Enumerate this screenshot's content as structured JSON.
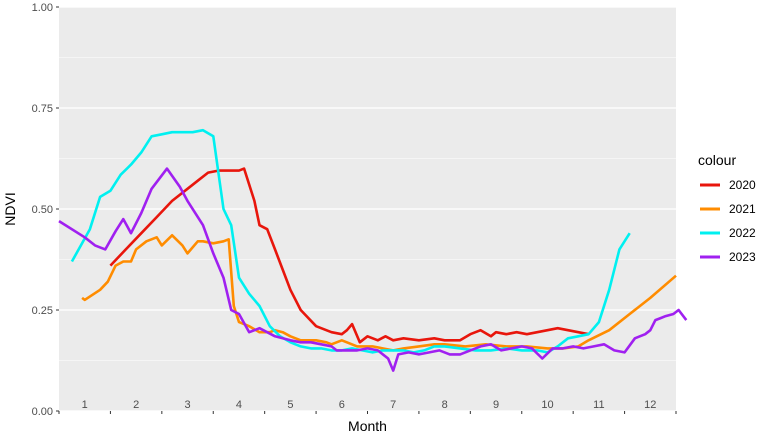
{
  "chart_data": {
    "type": "line",
    "title": "",
    "xlabel": "Month",
    "ylabel": "NDVI",
    "xlim": [
      0.5,
      12.5
    ],
    "ylim": [
      0,
      1
    ],
    "y_ticks": [
      "0.00",
      "0.25",
      "0.50",
      "0.75",
      "1.00"
    ],
    "x_tick_labels": [
      "1",
      "2",
      "3",
      "4",
      "5",
      "6",
      "7",
      "8",
      "9",
      "10",
      "11",
      "12"
    ],
    "grid": true,
    "legend": {
      "title": "colour",
      "placement": "right"
    },
    "series": [
      {
        "name": "2020",
        "color": "#e8160c",
        "x": [
          1.5,
          1.8,
          2.1,
          2.4,
          2.7,
          3.0,
          3.2,
          3.4,
          3.6,
          3.8,
          4.0,
          4.1,
          4.3,
          4.4,
          4.55,
          4.7,
          4.85,
          5.0,
          5.2,
          5.5,
          5.8,
          6.0,
          6.1,
          6.2,
          6.35,
          6.5,
          6.7,
          6.85,
          7.0,
          7.2,
          7.5,
          7.8,
          8.0,
          8.3,
          8.5,
          8.7,
          8.9,
          9.0,
          9.2,
          9.4,
          9.6,
          9.8,
          10.0,
          10.2,
          10.4,
          10.6,
          10.8
        ],
        "values": [
          0.36,
          0.4,
          0.44,
          0.48,
          0.52,
          0.55,
          0.57,
          0.59,
          0.595,
          0.595,
          0.595,
          0.6,
          0.52,
          0.46,
          0.45,
          0.4,
          0.35,
          0.3,
          0.25,
          0.21,
          0.195,
          0.19,
          0.2,
          0.215,
          0.17,
          0.185,
          0.175,
          0.185,
          0.175,
          0.18,
          0.175,
          0.18,
          0.175,
          0.175,
          0.19,
          0.2,
          0.185,
          0.195,
          0.19,
          0.195,
          0.19,
          0.195,
          0.2,
          0.205,
          0.2,
          0.195,
          0.19
        ]
      },
      {
        "name": "2021",
        "color": "#ff8c00",
        "x": [
          0.95,
          1.0,
          1.3,
          1.45,
          1.6,
          1.75,
          1.9,
          2.0,
          2.2,
          2.4,
          2.5,
          2.7,
          2.9,
          3.0,
          3.2,
          3.3,
          3.5,
          3.7,
          3.8,
          3.9,
          4.0,
          4.2,
          4.4,
          4.6,
          4.7,
          4.85,
          5.0,
          5.2,
          5.5,
          5.7,
          5.8,
          5.9,
          6.0,
          6.3,
          6.6,
          7.0,
          7.2,
          7.5,
          7.8,
          8.0,
          8.4,
          8.8,
          9.2,
          9.6,
          10.0,
          10.3,
          10.6,
          10.8,
          11.2,
          11.6,
          12.0,
          12.5
        ],
        "values": [
          0.28,
          0.275,
          0.3,
          0.32,
          0.36,
          0.37,
          0.37,
          0.4,
          0.42,
          0.43,
          0.41,
          0.435,
          0.41,
          0.39,
          0.42,
          0.42,
          0.415,
          0.42,
          0.425,
          0.26,
          0.22,
          0.21,
          0.195,
          0.195,
          0.2,
          0.195,
          0.185,
          0.175,
          0.175,
          0.17,
          0.165,
          0.17,
          0.175,
          0.16,
          0.16,
          0.15,
          0.155,
          0.16,
          0.165,
          0.165,
          0.16,
          0.165,
          0.16,
          0.16,
          0.155,
          0.155,
          0.16,
          0.175,
          0.2,
          0.24,
          0.28,
          0.335
        ]
      },
      {
        "name": "2022",
        "color": "#00f0f0",
        "x": [
          0.75,
          1.1,
          1.3,
          1.5,
          1.7,
          1.9,
          2.1,
          2.3,
          2.5,
          2.7,
          2.9,
          3.1,
          3.3,
          3.5,
          3.7,
          3.85,
          4.0,
          4.2,
          4.4,
          4.6,
          4.8,
          5.0,
          5.2,
          5.4,
          5.6,
          5.8,
          6.0,
          6.2,
          6.4,
          6.6,
          6.8,
          7.0,
          7.2,
          7.4,
          7.6,
          7.8,
          8.0,
          8.3,
          8.6,
          8.9,
          9.2,
          9.5,
          9.8,
          10.0,
          10.2,
          10.4,
          10.6,
          10.8,
          11.0,
          11.2,
          11.4,
          11.6
        ],
        "values": [
          0.37,
          0.45,
          0.53,
          0.545,
          0.585,
          0.61,
          0.64,
          0.68,
          0.685,
          0.69,
          0.69,
          0.69,
          0.695,
          0.68,
          0.5,
          0.46,
          0.33,
          0.29,
          0.26,
          0.21,
          0.185,
          0.17,
          0.16,
          0.155,
          0.155,
          0.15,
          0.15,
          0.155,
          0.15,
          0.145,
          0.15,
          0.15,
          0.15,
          0.145,
          0.15,
          0.16,
          0.16,
          0.155,
          0.15,
          0.15,
          0.155,
          0.15,
          0.15,
          0.145,
          0.16,
          0.18,
          0.185,
          0.19,
          0.22,
          0.3,
          0.4,
          0.44
        ]
      },
      {
        "name": "2023",
        "color": "#a020f0",
        "x": [
          0.5,
          1.0,
          1.2,
          1.4,
          1.6,
          1.75,
          1.9,
          2.1,
          2.3,
          2.6,
          2.85,
          3.0,
          3.3,
          3.5,
          3.7,
          3.85,
          4.0,
          4.2,
          4.4,
          4.7,
          5.0,
          5.2,
          5.4,
          5.6,
          5.8,
          5.9,
          6.1,
          6.3,
          6.5,
          6.7,
          6.9,
          7.0,
          7.1,
          7.3,
          7.5,
          7.7,
          7.9,
          8.1,
          8.3,
          8.5,
          8.7,
          8.9,
          9.1,
          9.3,
          9.5,
          9.7,
          9.9,
          10.1,
          10.3,
          10.5,
          10.7,
          10.9,
          11.1,
          11.3,
          11.5,
          11.7,
          11.9,
          12.0,
          12.1,
          12.2,
          12.3,
          12.45,
          12.55,
          12.7
        ],
        "values": [
          0.47,
          0.43,
          0.41,
          0.4,
          0.445,
          0.475,
          0.44,
          0.49,
          0.55,
          0.6,
          0.555,
          0.52,
          0.46,
          0.39,
          0.33,
          0.25,
          0.24,
          0.195,
          0.205,
          0.185,
          0.175,
          0.17,
          0.17,
          0.165,
          0.16,
          0.15,
          0.15,
          0.15,
          0.155,
          0.15,
          0.13,
          0.1,
          0.14,
          0.145,
          0.14,
          0.145,
          0.15,
          0.14,
          0.14,
          0.15,
          0.16,
          0.165,
          0.15,
          0.155,
          0.16,
          0.155,
          0.13,
          0.155,
          0.155,
          0.16,
          0.155,
          0.16,
          0.165,
          0.15,
          0.145,
          0.18,
          0.19,
          0.2,
          0.225,
          0.23,
          0.235,
          0.24,
          0.25,
          0.225
        ]
      }
    ]
  }
}
